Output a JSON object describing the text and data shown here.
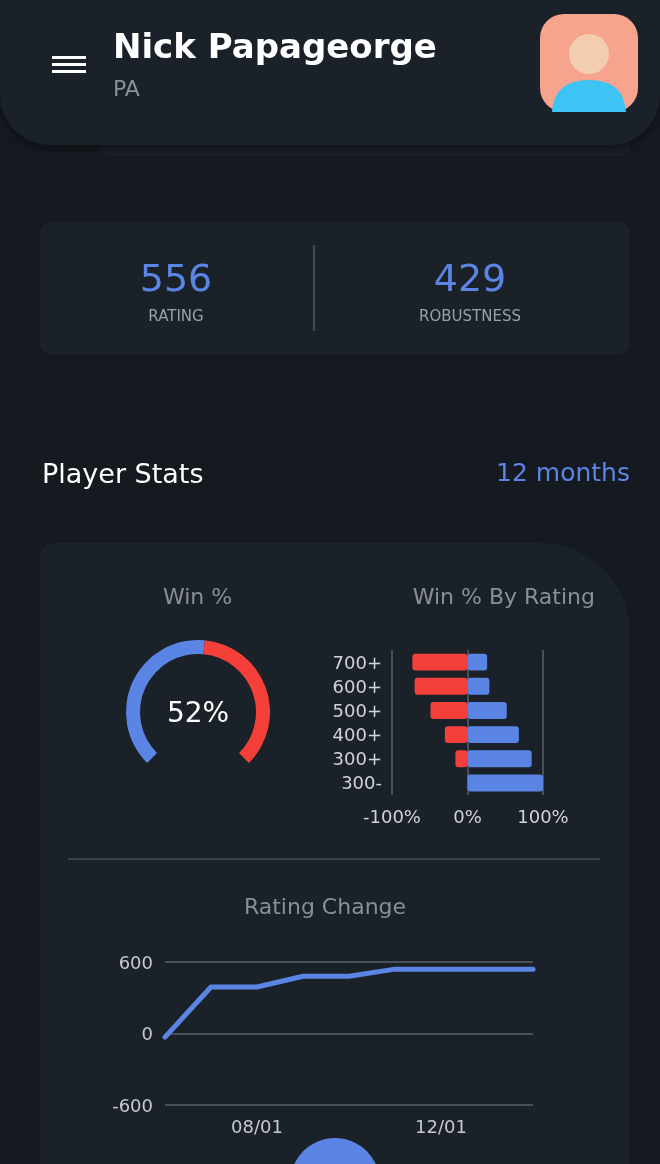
{
  "chart_data": [
    {
      "type": "other",
      "title": "Nick Papageorge",
      "subtitle": "PA",
      "annotations": [
        "556",
        "RATING",
        "429",
        "ROBUSTNESS",
        "Player Stats",
        "12 months"
      ]
    },
    {
      "type": "donut",
      "title": "Win %",
      "categories": [
        null,
        null
      ],
      "values": [
        52,
        48
      ],
      "colors": [
        "#5b85e4",
        "#f5403a"
      ],
      "value_labels": [
        "52%",
        null
      ]
    },
    {
      "type": "bar",
      "title": "Win % By Rating",
      "orientation": "horizontal",
      "stacked": true,
      "categories": [
        "700+",
        "600+",
        "500+",
        "400+",
        "300+",
        "300-"
      ],
      "series": [
        {
          "color": "#f5403a",
          "values": [
            -73,
            -70,
            -49,
            -30,
            -16,
            0
          ]
        },
        {
          "color": "#5b85e4",
          "values": [
            26,
            29,
            52,
            68,
            85,
            100
          ]
        }
      ],
      "xlim": [
        -100,
        100
      ],
      "xticks": [
        {
          "value": -100,
          "label": "-100%"
        },
        {
          "value": 0,
          "label": "0%"
        },
        {
          "value": 100,
          "label": "100%"
        }
      ],
      "grid": "x"
    },
    {
      "type": "line",
      "title": "Rating Change",
      "categories": [
        null,
        null,
        "08/01",
        null,
        null,
        null,
        "12/01",
        null,
        null
      ],
      "series": [
        {
          "color": "#5b85e4",
          "values": [
            -30,
            390,
            390,
            480,
            480,
            540,
            540,
            540,
            540
          ]
        }
      ],
      "ylim": [
        -600,
        600
      ],
      "yticks": [
        -600,
        0,
        600
      ],
      "grid": "y",
      "marker": "none",
      "line_style": "solid"
    }
  ]
}
